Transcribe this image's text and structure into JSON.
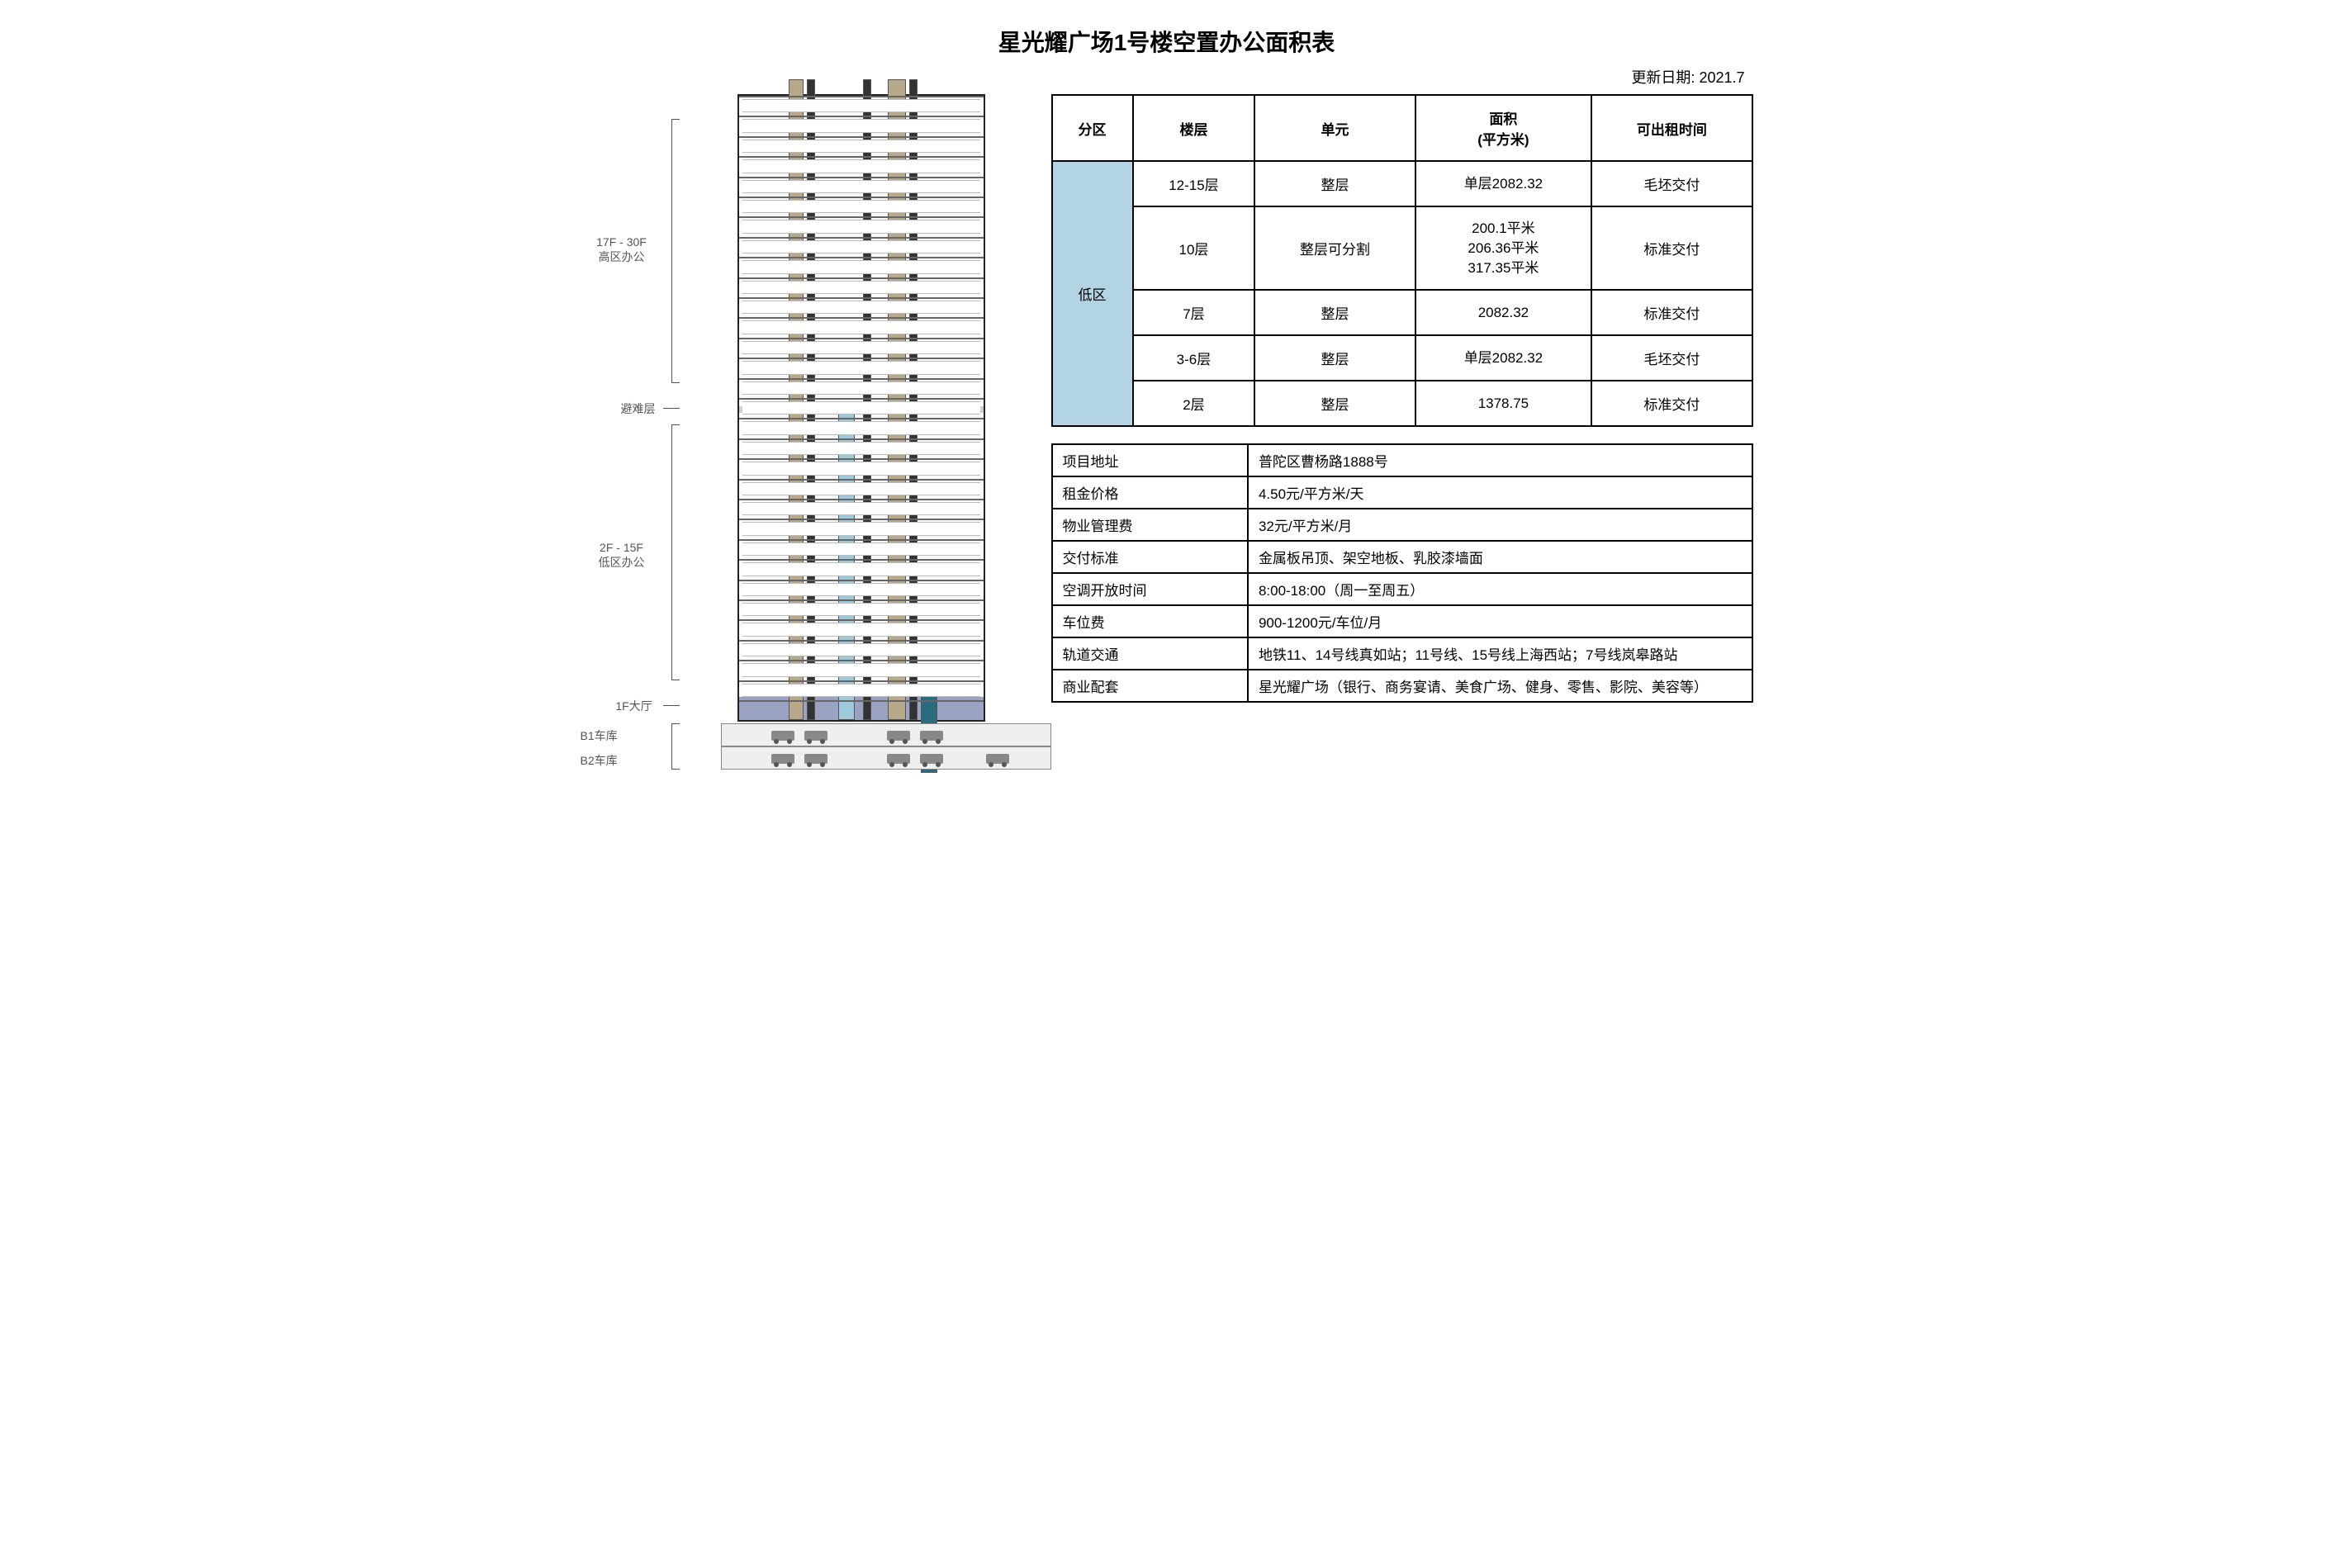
{
  "title": "星光耀广场1号楼空置办公面积表",
  "update_date": "更新日期: 2021.7",
  "elevation": {
    "labels": {
      "high_zone": "17F - 30F\n高区办公",
      "refuge": "避难层",
      "low_zone": "2F - 15F\n低区办公",
      "lobby": "1F大厅",
      "b1": "B1车库",
      "b2": "B2车库"
    },
    "floors_total": 30,
    "refuge_floor_index": 16,
    "colors": {
      "core_light": "#b8a88a",
      "core_dark": "#333333",
      "shaft": "#9fc8d8",
      "lobby": "#9aa3c4",
      "slab": "#666666",
      "outline": "#222222",
      "zone_cell_bg": "#b3d4e5"
    }
  },
  "vacancy_table": {
    "headers": [
      "分区",
      "楼层",
      "单元",
      "面积\n(平方米)",
      "可出租时间"
    ],
    "zone_label": "低区",
    "rows": [
      {
        "floor": "12-15层",
        "unit": "整层",
        "area": "单层2082.32",
        "avail": "毛坯交付"
      },
      {
        "floor": "10层",
        "unit": "整层可分割",
        "area": "200.1平米\n206.36平米\n317.35平米",
        "avail": "标准交付"
      },
      {
        "floor": "7层",
        "unit": "整层",
        "area": "2082.32",
        "avail": "标准交付"
      },
      {
        "floor": "3-6层",
        "unit": "整层",
        "area": "单层2082.32",
        "avail": "毛坯交付"
      },
      {
        "floor": "2层",
        "unit": "整层",
        "area": "1378.75",
        "avail": "标准交付"
      }
    ]
  },
  "info_table": {
    "rows": [
      {
        "key": "项目地址",
        "value": "普陀区曹杨路1888号"
      },
      {
        "key": "租金价格",
        "value": "4.50元/平方米/天"
      },
      {
        "key": "物业管理费",
        "value": "32元/平方米/月"
      },
      {
        "key": "交付标准",
        "value": "金属板吊顶、架空地板、乳胶漆墙面"
      },
      {
        "key": "空调开放时间",
        "value": "8:00-18:00（周一至周五）"
      },
      {
        "key": "车位费",
        "value": "900-1200元/车位/月"
      },
      {
        "key": "轨道交通",
        "value": "地铁11、14号线真如站；11号线、15号线上海西站；7号线岚皋路站"
      },
      {
        "key": "商业配套",
        "value": "星光耀广场（银行、商务宴请、美食广场、健身、零售、影院、美容等）"
      }
    ]
  }
}
